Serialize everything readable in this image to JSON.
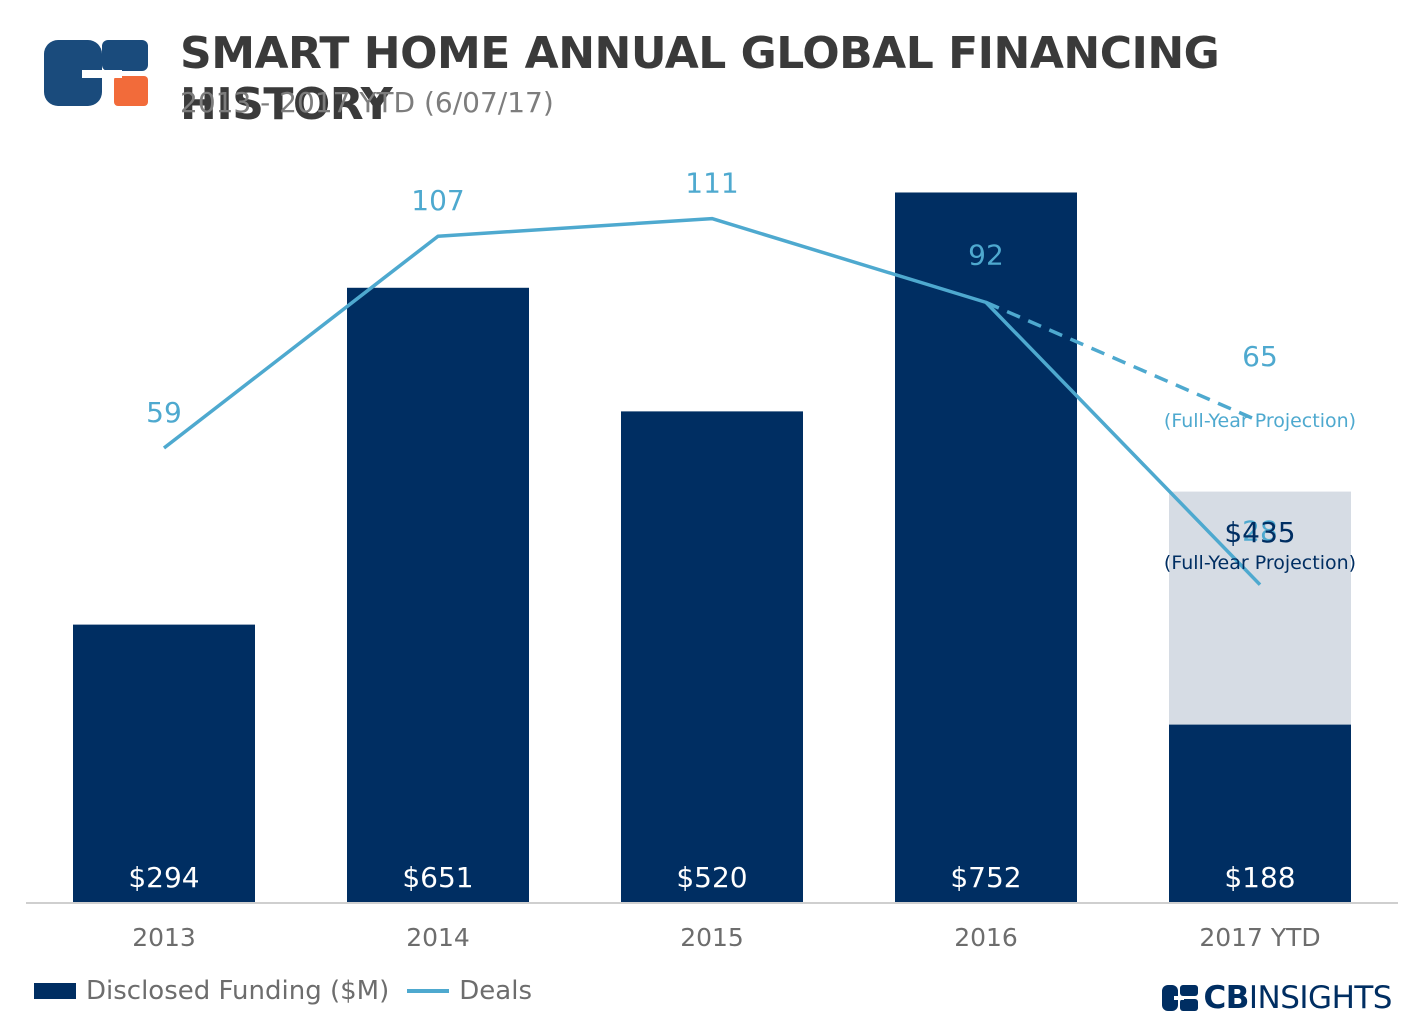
{
  "header": {
    "title": "SMART HOME ANNUAL GLOBAL FINANCING HISTORY",
    "subtitle": "2013 - 2017 YTD (6/07/17)"
  },
  "colors": {
    "bar": "#002e62",
    "projection_bar": "#d6dce4",
    "line": "#4ea9cf",
    "logo_blue": "#1a4b7c",
    "logo_orange": "#f26b3a"
  },
  "legend": {
    "funding_label": "Disclosed Funding ($M)",
    "deals_label": "Deals"
  },
  "brand": {
    "cb": "CB",
    "insights": "INSIGHTS"
  },
  "chart_data": {
    "type": "bar",
    "categories": [
      "2013",
      "2014",
      "2015",
      "2016",
      "2017 YTD"
    ],
    "series": [
      {
        "name": "Disclosed Funding ($M)",
        "type": "bar",
        "values": [
          294,
          651,
          520,
          752,
          188
        ],
        "labels": [
          "$294",
          "$651",
          "$520",
          "$752",
          "$188"
        ]
      },
      {
        "name": "Deals",
        "type": "line",
        "values": [
          59,
          107,
          111,
          92,
          28
        ],
        "labels": [
          "59",
          "107",
          "111",
          "92",
          "28"
        ]
      }
    ],
    "projection": {
      "category": "2017 YTD",
      "funding": 435,
      "funding_label": "$435",
      "funding_note": "(Full-Year Projection)",
      "deals": 65,
      "deals_label": "65",
      "deals_note": "(Full-Year Projection)"
    },
    "grid": false
  }
}
